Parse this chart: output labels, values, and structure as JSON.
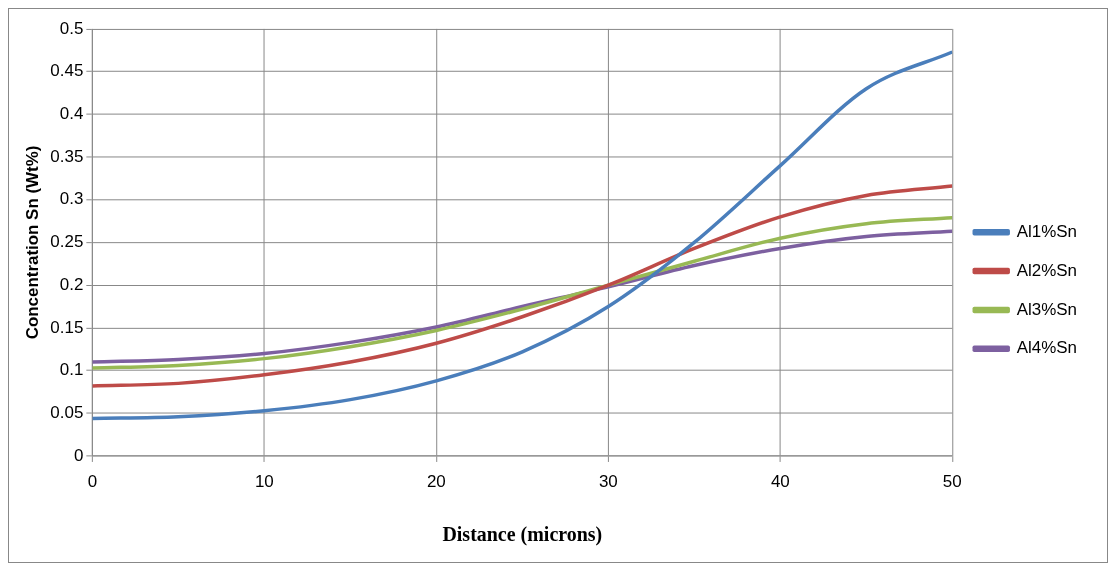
{
  "chart_data": {
    "type": "line",
    "xlabel": "Distance (microns)",
    "ylabel": "Concentration Sn (Wt%)",
    "x": [
      0,
      5,
      10,
      15,
      20,
      25,
      30,
      35,
      40,
      45,
      50
    ],
    "series": [
      {
        "name": "Al1%Sn",
        "color": "#4a7ebb",
        "values": [
          0.044,
          0.046,
          0.053,
          0.066,
          0.088,
          0.122,
          0.175,
          0.25,
          0.34,
          0.43,
          0.473
        ]
      },
      {
        "name": "Al2%Sn",
        "color": "#be4b48",
        "values": [
          0.082,
          0.085,
          0.095,
          0.11,
          0.132,
          0.163,
          0.2,
          0.243,
          0.28,
          0.305,
          0.316
        ]
      },
      {
        "name": "Al3%Sn",
        "color": "#98b954",
        "values": [
          0.103,
          0.106,
          0.114,
          0.128,
          0.147,
          0.172,
          0.2,
          0.228,
          0.255,
          0.272,
          0.279
        ]
      },
      {
        "name": "Al4%Sn",
        "color": "#7d60a0",
        "values": [
          0.11,
          0.113,
          0.12,
          0.133,
          0.151,
          0.175,
          0.198,
          0.223,
          0.243,
          0.257,
          0.263
        ]
      }
    ],
    "xlim": [
      0,
      50
    ],
    "xticks": [
      0,
      10,
      20,
      30,
      40,
      50
    ],
    "ylim": [
      0,
      0.5
    ],
    "yticks": [
      0,
      0.05,
      0.1,
      0.15,
      0.2,
      0.25,
      0.3,
      0.35,
      0.4,
      0.45,
      0.5
    ],
    "grid": true,
    "legend": "right",
    "marker": "none",
    "line_style": "solid"
  }
}
